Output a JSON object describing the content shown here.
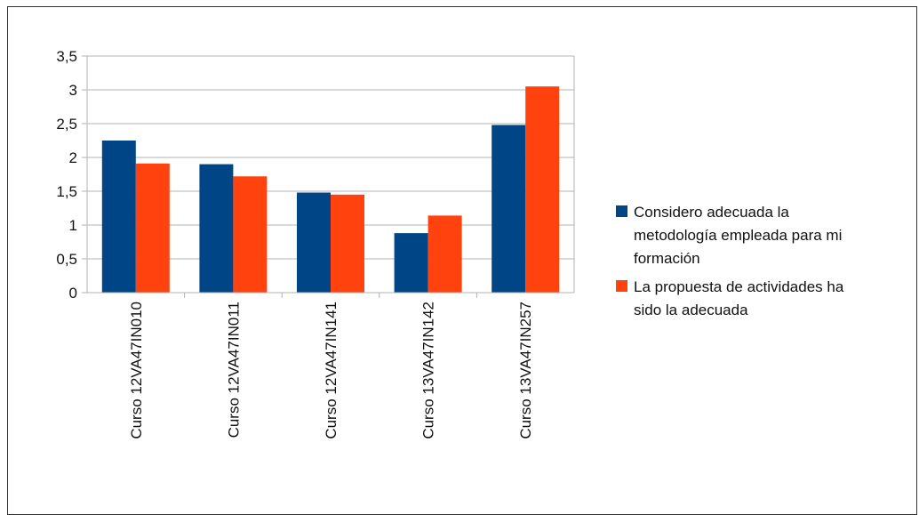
{
  "chart_data": {
    "type": "bar",
    "title": "",
    "xlabel": "",
    "ylabel": "",
    "categories": [
      "Curso 12VA47IN010",
      "Curso 12VA47IN011",
      "Curso 12VA47IN141",
      "Curso 13VA47IN142",
      "Curso 13VA47IN257"
    ],
    "series": [
      {
        "name": "Considero adecuada la metodología empleada para mi formación",
        "legend_lines": [
          "Considero adecuada la",
          "metodología empleada para mi",
          "formación"
        ],
        "color": "#004586",
        "values": [
          2.25,
          1.9,
          1.48,
          0.88,
          2.48
        ]
      },
      {
        "name": "La propuesta de actividades ha sido la adecuada",
        "legend_lines": [
          "La propuesta de actividades ha",
          "sido la adecuada"
        ],
        "color": "#ff420e",
        "values": [
          1.91,
          1.72,
          1.45,
          1.14,
          3.05
        ]
      }
    ],
    "ylim": [
      0,
      3.5
    ],
    "yticks": [
      0,
      0.5,
      1,
      1.5,
      2,
      2.5,
      3,
      3.5
    ],
    "ytick_labels": [
      "0",
      "0,5",
      "1",
      "1,5",
      "2",
      "2,5",
      "3",
      "3,5"
    ],
    "grid": true,
    "legend_position": "right",
    "grid_color": "#b3b3b3"
  }
}
